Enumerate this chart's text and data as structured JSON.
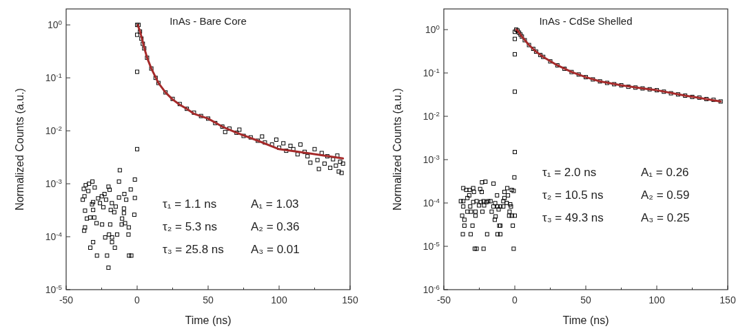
{
  "chart_data": [
    {
      "type": "scatter",
      "title": "InAs - Bare Core",
      "xlabel": "Time (ns)",
      "ylabel": "Normalized Counts (a.u.)",
      "log": "y",
      "xlim": [
        -50,
        150
      ],
      "ylim": [
        1e-05,
        2
      ],
      "xticks": [
        -50,
        {
          "value": -25,
          "label": null
        },
        0,
        {
          "value": 25,
          "label": null
        },
        50,
        {
          "value": 75,
          "label": null
        },
        100,
        {
          "value": 125,
          "label": null
        },
        150
      ],
      "yticks": [
        {
          "value": 1e-05,
          "label": "10$^{-5}$"
        },
        {
          "value": 0.0001,
          "label": "10$^{-4}$"
        },
        {
          "value": 0.001,
          "label": "10$^{-3}$"
        },
        {
          "value": 0.01,
          "label": "10$^{-2}$"
        },
        {
          "value": 0.1,
          "label": "10$^{-1}$"
        },
        {
          "value": 1,
          "label": "10$^{0}$"
        }
      ],
      "annotations": [
        "τ₁ = 1.1 ns",
        "A₁ = 1.03",
        "τ₂ = 5.3 ns",
        "A₂ = 0.36",
        "τ₃ = 25.8 ns",
        "A₃ = 0.01"
      ],
      "series": [
        {
          "type": "scatter",
          "marker": "square",
          "color": "#000000",
          "x": [
            -12.2,
            -1.6,
            -12.8,
            -31.5,
            -33.9,
            -36.2,
            -37.6,
            -29.9,
            -20.2,
            -19.4,
            -34.4,
            -9.0,
            -4.5,
            -23.0,
            -24.9,
            -27.5,
            -38.3,
            -37.1,
            -21.9,
            -12.8,
            -7.7,
            -1.6,
            -31.0,
            -31.8,
            -26.2,
            -17.8,
            -15.1,
            -23.8,
            -9.3,
            -36.7,
            -31.0,
            -18.6,
            -16.1,
            -9.3,
            -2.0,
            -35.4,
            -33.1,
            -30.2,
            -10.6,
            -28.6,
            -24.7,
            -19.0,
            -10.9,
            -8.5,
            -36.7,
            -37.3,
            -5.9,
            -19.8,
            -14.1,
            -6.1,
            -22.5,
            -17.7,
            -31.0,
            -17.7,
            -33.0,
            -15.7,
            -28.3,
            -21.2,
            -5.7,
            -4.1,
            -20.2,
            0,
            0,
            0,
            0,
            1,
            2,
            3,
            4,
            5,
            7,
            10,
            13,
            15,
            20,
            25,
            30,
            35,
            40,
            45,
            50,
            55,
            60,
            62,
            65,
            70,
            72,
            75,
            80,
            85,
            88,
            90,
            95,
            98,
            100,
            103,
            105,
            108,
            110,
            113,
            115,
            118,
            120,
            122,
            125,
            127,
            128,
            130,
            132,
            134,
            136,
            138,
            140,
            141,
            142,
            143,
            144,
            145
          ],
          "values": [
            0.0018,
            0.0012,
            0.0011,
            0.0011,
            0.001,
            0.00094,
            0.0008,
            0.00085,
            0.00088,
            0.00077,
            0.00073,
            0.00064,
            0.00078,
            0.00064,
            0.00058,
            0.00053,
            0.0005,
            0.00058,
            0.0005,
            0.00055,
            0.0005,
            0.00054,
            0.00045,
            0.00041,
            0.00043,
            0.00043,
            0.00037,
            0.00036,
            0.00034,
            0.00031,
            0.00032,
            0.00032,
            0.00029,
            0.00028,
            0.00026,
            0.00022,
            0.00023,
            0.00023,
            0.00022,
            0.00018,
            0.00017,
            0.00017,
            0.00017,
            0.00018,
            0.00015,
            0.00013,
            0.00015,
            0.00011,
            0.00011,
            0.00011,
            9.7e-05,
            9.7e-05,
            7.9e-05,
            7.9e-05,
            6.2e-05,
            6.2e-05,
            4.4e-05,
            4.4e-05,
            4.4e-05,
            4.4e-05,
            2.6e-05,
            0.65,
            0.13,
            0.0045,
            1.0,
            1.0,
            0.75,
            0.55,
            0.44,
            0.36,
            0.24,
            0.15,
            0.1,
            0.08,
            0.053,
            0.04,
            0.032,
            0.026,
            0.022,
            0.019,
            0.017,
            0.014,
            0.012,
            0.0095,
            0.011,
            0.0092,
            0.0105,
            0.008,
            0.0075,
            0.0065,
            0.0078,
            0.006,
            0.0055,
            0.0068,
            0.0048,
            0.0058,
            0.0042,
            0.0052,
            0.0045,
            0.0036,
            0.0055,
            0.004,
            0.0033,
            0.0025,
            0.0045,
            0.0028,
            0.0019,
            0.0038,
            0.0024,
            0.0033,
            0.002,
            0.0029,
            0.0022,
            0.0034,
            0.0017,
            0.0026,
            0.0016,
            0.0024
          ]
        },
        {
          "type": "line",
          "color": "#a52a2a",
          "x": [
            0.5,
            1,
            2,
            3,
            5,
            7,
            10,
            15,
            20,
            25,
            30,
            35,
            40,
            50,
            60,
            70,
            85,
            100,
            120,
            145
          ],
          "values": [
            1.0,
            0.9,
            0.76,
            0.6,
            0.37,
            0.24,
            0.15,
            0.08,
            0.053,
            0.039,
            0.031,
            0.026,
            0.021,
            0.017,
            0.012,
            0.0092,
            0.0065,
            0.0045,
            0.0038,
            0.003
          ]
        }
      ]
    },
    {
      "type": "scatter",
      "title": "InAs - CdSe Shelled",
      "xlabel": "Time (ns)",
      "ylabel": "Normalized Counts (a.u.)",
      "log": "y",
      "xlim": [
        -50,
        150
      ],
      "ylim": [
        1e-06,
        3
      ],
      "xticks": [
        -50,
        {
          "value": -25,
          "label": null
        },
        0,
        {
          "value": 25,
          "label": null
        },
        50,
        {
          "value": 75,
          "label": null
        },
        100,
        {
          "value": 125,
          "label": null
        },
        150
      ],
      "yticks": [
        {
          "value": 1e-06,
          "label": "10$^{-6}$"
        },
        {
          "value": 1e-05,
          "label": "10$^{-5}$"
        },
        {
          "value": 0.0001,
          "label": "10$^{-4}$"
        },
        {
          "value": 0.001,
          "label": "10$^{-3}$"
        },
        {
          "value": 0.01,
          "label": "10$^{-2}$"
        },
        {
          "value": 0.1,
          "label": "10$^{-1}$"
        },
        {
          "value": 1,
          "label": "10$^{0}$"
        }
      ],
      "annotations": [
        "τ₁ = 2.0 ns",
        "A₁ = 0.26",
        "τ₂ = 10.5 ns",
        "A₂ = 0.59",
        "τ₃ = 49.3 ns",
        "A₃ = 0.25"
      ],
      "series": [
        {
          "type": "scatter",
          "marker": "square",
          "color": "#000000",
          "x": [
            -0.3,
            -23.1,
            -20.7,
            -15.0,
            -36.3,
            -34.2,
            -31.8,
            -29.3,
            -24.4,
            -23.3,
            -5.3,
            -2.1,
            -0.8,
            -32.1,
            -28.8,
            -12.5,
            -7.3,
            -4.8,
            -33.4,
            -7.3,
            -38.0,
            -36.3,
            -29.3,
            -26.9,
            -23.9,
            -22.0,
            -20.0,
            -18.7,
            -17.1,
            -13.8,
            -8.1,
            -5.7,
            -3.2,
            -36.3,
            -31.4,
            -25.2,
            -21.6,
            -15.1,
            -12.2,
            -10.2,
            -8.1,
            -2.7,
            -11.4,
            -33.4,
            -30.9,
            -27.7,
            -22.8,
            -16.3,
            -3.7,
            -37.1,
            -27.7,
            -4.0,
            -2.1,
            0.0,
            -13.5,
            -35.5,
            -14.1,
            -35.5,
            -29.8,
            -10.9,
            -10.2,
            -1.4,
            -36.6,
            -31.1,
            -19.5,
            -12.2,
            -10.2,
            -28.2,
            -26.9,
            -22.0,
            -0.8,
            0,
            0,
            0,
            0,
            0,
            1,
            2,
            3,
            4,
            5,
            7,
            10,
            13,
            15,
            18,
            20,
            25,
            30,
            35,
            40,
            45,
            50,
            55,
            60,
            65,
            70,
            75,
            80,
            85,
            90,
            95,
            100,
            105,
            110,
            115,
            120,
            125,
            130,
            135,
            140,
            145
          ],
          "values": [
            0.00039,
            0.0003,
            0.00031,
            0.00028,
            0.00022,
            0.0002,
            0.0002,
            0.00022,
            0.00021,
            0.00018,
            0.00022,
            0.0002,
            0.00019,
            0.00015,
            0.00018,
            0.00015,
            0.00018,
            0.00015,
            0.00013,
            0.00013,
            0.00011,
            0.00011,
            0.000105,
            0.00011,
            0.000105,
            0.00011,
            0.000105,
            0.00011,
            0.00011,
            9.9e-05,
            0.00011,
            0.0001,
            9.3e-05,
            8.3e-05,
            8.3e-05,
            8.8e-05,
            8.8e-05,
            8.3e-05,
            8.3e-05,
            8.3e-05,
            8.3e-05,
            8.3e-05,
            7.1e-05,
            6.3e-05,
            6.3e-05,
            6.3e-05,
            6.3e-05,
            6.3e-05,
            6.3e-05,
            5.1e-05,
            5.1e-05,
            5.1e-05,
            5.1e-05,
            5.1e-05,
            4.9e-05,
            4.1e-05,
            4.1e-05,
            3e-05,
            3e-05,
            3e-05,
            3e-05,
            3e-05,
            1.9e-05,
            1.9e-05,
            1.9e-05,
            1.9e-05,
            1.9e-05,
            8.8e-06,
            8.8e-06,
            8.8e-06,
            8.8e-06,
            0.89,
            0.61,
            0.27,
            0.037,
            0.0015,
            1.0,
            0.95,
            0.85,
            0.77,
            0.69,
            0.57,
            0.44,
            0.36,
            0.31,
            0.26,
            0.235,
            0.185,
            0.15,
            0.125,
            0.105,
            0.092,
            0.08,
            0.071,
            0.064,
            0.059,
            0.055,
            0.052,
            0.048,
            0.046,
            0.044,
            0.042,
            0.04,
            0.037,
            0.034,
            0.032,
            0.03,
            0.028,
            0.027,
            0.025,
            0.024,
            0.022
          ]
        },
        {
          "type": "line",
          "color": "#a52a2a",
          "x": [
            1,
            2,
            5,
            10,
            15,
            20,
            30,
            40,
            50,
            60,
            75,
            90,
            100,
            120,
            135,
            145
          ],
          "values": [
            1.0,
            0.95,
            0.69,
            0.44,
            0.31,
            0.235,
            0.15,
            0.105,
            0.08,
            0.064,
            0.052,
            0.044,
            0.04,
            0.03,
            0.025,
            0.022
          ]
        }
      ]
    }
  ]
}
